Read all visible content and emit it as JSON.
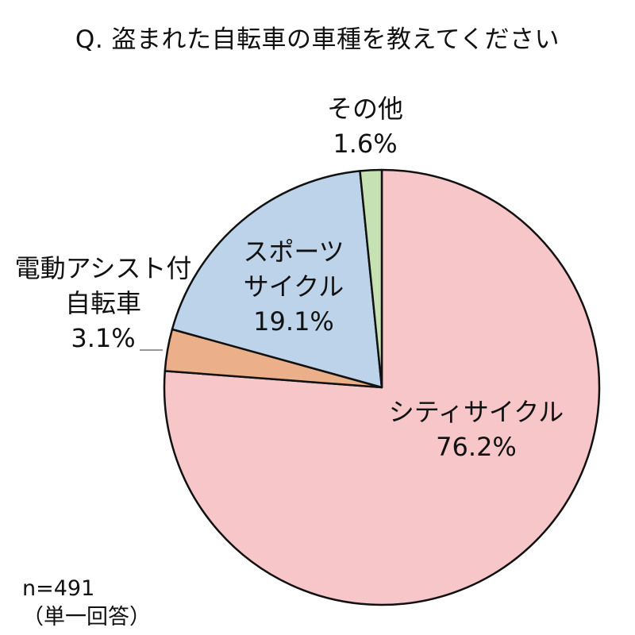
{
  "chart_data": {
    "type": "pie",
    "title": "Q. 盗まれた自転車の車種を教えてください",
    "slices": [
      {
        "label": "シティサイクル",
        "label_lines": [
          "シティサイクル"
        ],
        "value": 76.2,
        "value_text": "76.2%",
        "color": "#f6c6c8"
      },
      {
        "label": "電動アシスト付自転車",
        "label_lines": [
          "電動アシスト付",
          "自転車"
        ],
        "value": 3.1,
        "value_text": "3.1%",
        "color": "#ebb08a"
      },
      {
        "label": "スポーツサイクル",
        "label_lines": [
          "スポーツ",
          "サイクル"
        ],
        "value": 19.1,
        "value_text": "19.1%",
        "color": "#bdd3ea"
      },
      {
        "label": "その他",
        "label_lines": [
          "その他"
        ],
        "value": 1.6,
        "value_text": "1.6%",
        "color": "#c6e2b3"
      }
    ],
    "start_angle": "12 o'clock",
    "direction": "clockwise",
    "outline_color": "#111111"
  },
  "note": {
    "sample": "n=491",
    "answer_type": "（単一回答）"
  }
}
